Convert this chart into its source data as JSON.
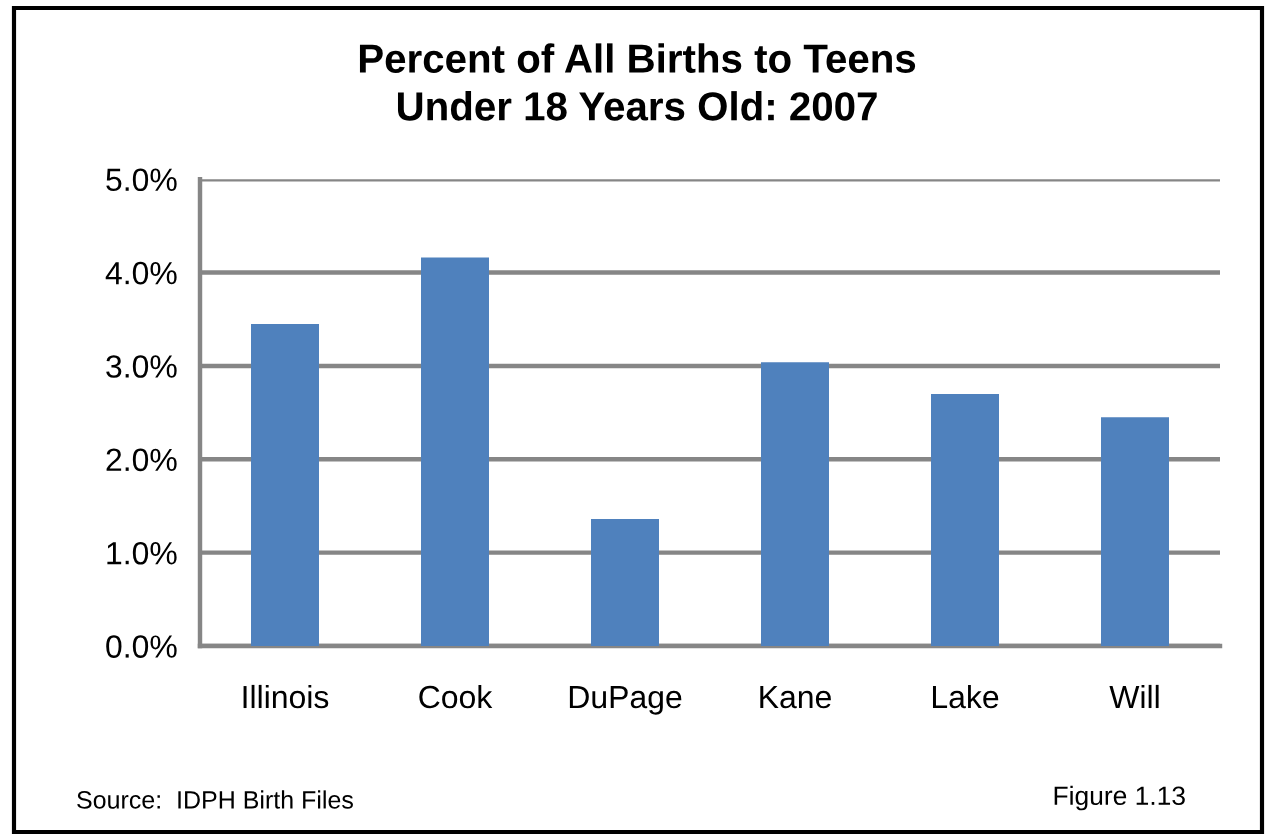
{
  "chart_data": {
    "type": "bar",
    "title": "Percent of All Births to Teens\nUnder 18 Years Old: 2007",
    "categories": [
      "Illinois",
      "Cook",
      "DuPage",
      "Kane",
      "Lake",
      "Will"
    ],
    "values": [
      3.45,
      4.16,
      1.36,
      3.04,
      2.7,
      2.45
    ],
    "color": "#4f81bd",
    "ylim": [
      0,
      5
    ],
    "yticks": [
      {
        "value": 0,
        "label": "0.0%"
      },
      {
        "value": 1,
        "label": "1.0%"
      },
      {
        "value": 2,
        "label": "2.0%"
      },
      {
        "value": 3,
        "label": "3.0%"
      },
      {
        "value": 4,
        "label": "4.0%"
      },
      {
        "value": 5,
        "label": "5.0%"
      }
    ],
    "grid": "y",
    "annotations": [
      "Source:  IDPH Birth Files",
      "Figure 1.13"
    ]
  }
}
